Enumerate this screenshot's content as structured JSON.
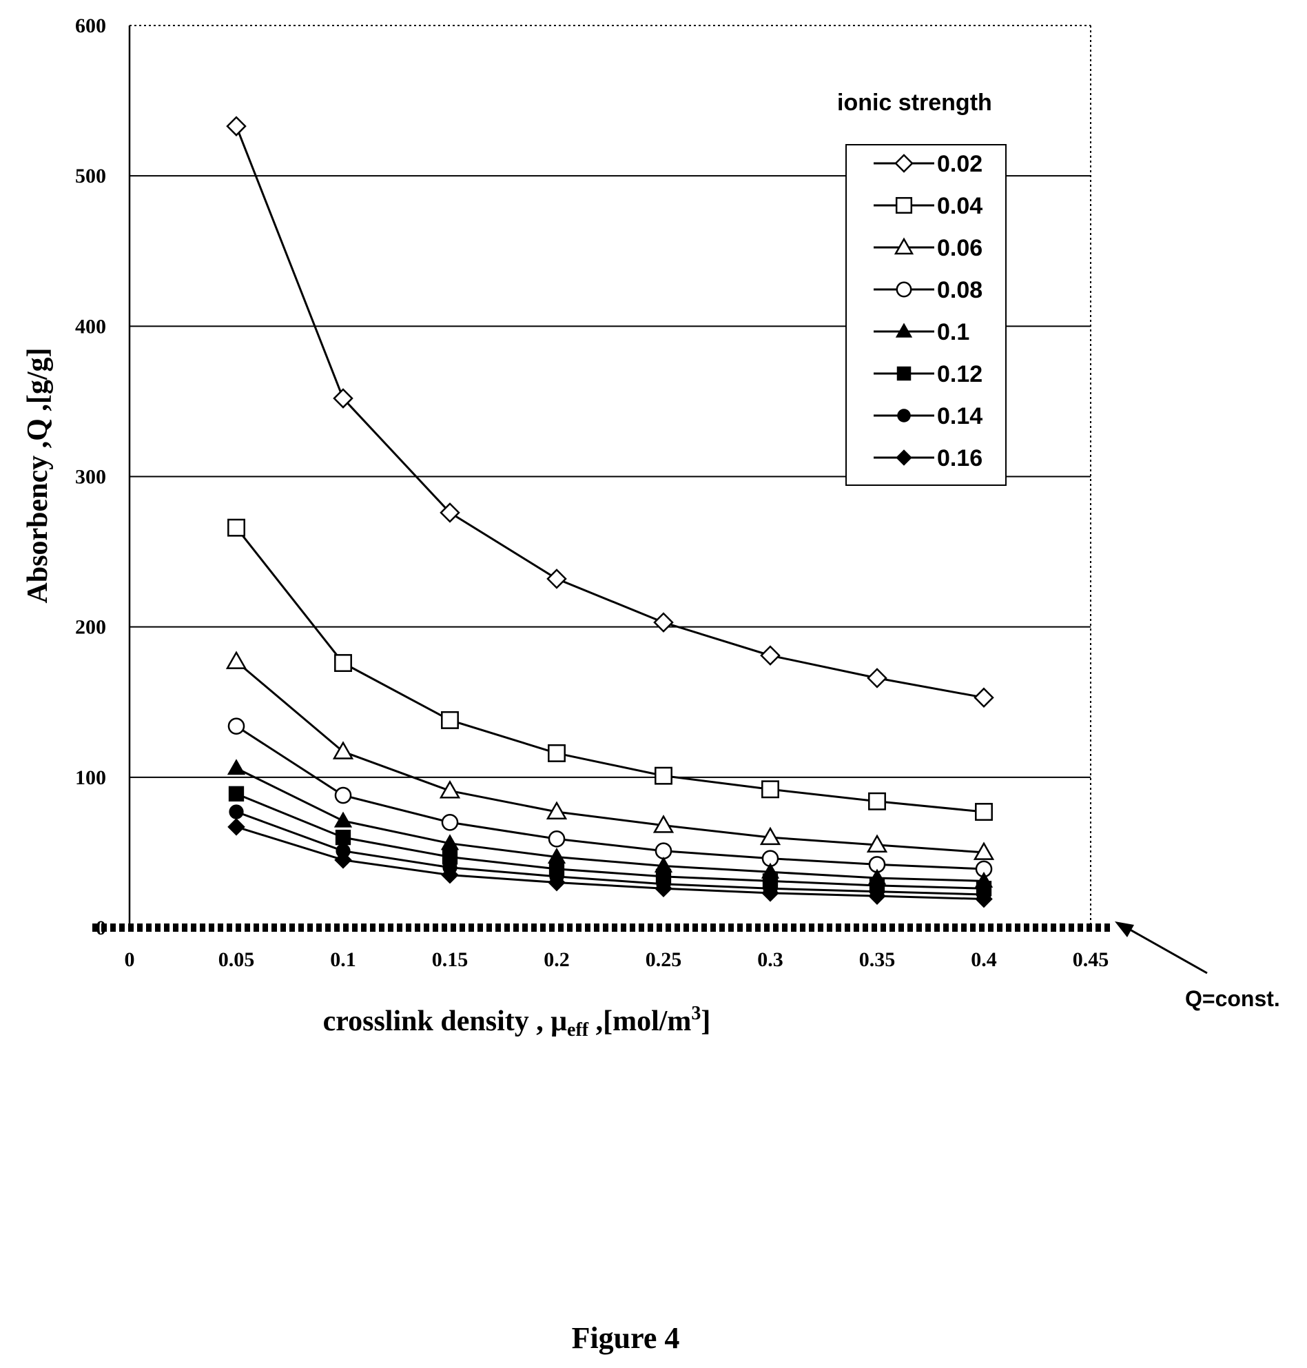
{
  "chart_data": {
    "type": "line",
    "x": [
      0.05,
      0.1,
      0.15,
      0.2,
      0.25,
      0.3,
      0.35,
      0.4
    ],
    "xlim": [
      0,
      0.45
    ],
    "ylim": [
      0,
      600
    ],
    "x_ticks": [
      "0",
      "0.05",
      "0.1",
      "0.15",
      "0.2",
      "0.25",
      "0.3",
      "0.35",
      "0.4",
      "0.45"
    ],
    "y_ticks": [
      "0",
      "100",
      "200",
      "300",
      "400",
      "500",
      "600"
    ],
    "ylabel": "Absorbency ,Q ,[g/g]",
    "xlabel_parts": {
      "main": "crosslink density , μ",
      "sub": "eff",
      "mid": " ,[mol/m",
      "sup": "3",
      "end": "]"
    },
    "grid": "horizontal",
    "legend_title": "ionic strength",
    "legend_position": "top-right",
    "series": [
      {
        "name": "0.02",
        "marker": "diamond-open",
        "values": [
          533,
          352,
          276,
          232,
          203,
          181,
          166,
          153
        ]
      },
      {
        "name": "0.04",
        "marker": "square-open",
        "values": [
          266,
          176,
          138,
          116,
          101,
          92,
          84,
          77
        ]
      },
      {
        "name": "0.06",
        "marker": "triangle-open",
        "values": [
          177,
          117,
          91,
          77,
          68,
          60,
          55,
          50
        ]
      },
      {
        "name": "0.08",
        "marker": "circle-open",
        "values": [
          134,
          88,
          70,
          59,
          51,
          46,
          42,
          39
        ]
      },
      {
        "name": "0.1",
        "marker": "triangle-filled",
        "values": [
          106,
          71,
          56,
          47,
          41,
          37,
          33,
          31
        ]
      },
      {
        "name": "0.12",
        "marker": "square-filled",
        "values": [
          89,
          60,
          47,
          39,
          34,
          31,
          28,
          26
        ]
      },
      {
        "name": "0.14",
        "marker": "circle-filled",
        "values": [
          77,
          51,
          40,
          34,
          29,
          26,
          24,
          22
        ]
      },
      {
        "name": "0.16",
        "marker": "diamond-filled",
        "values": [
          67,
          45,
          35,
          30,
          26,
          23,
          21,
          19
        ]
      }
    ],
    "annotation": "Q=const."
  },
  "caption": "Figure 4"
}
